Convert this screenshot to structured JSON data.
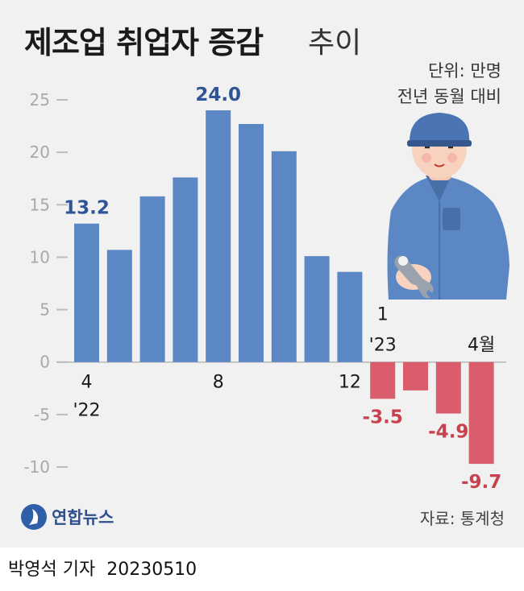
{
  "title": {
    "bold": "제조업 취업자 증감",
    "light": "추이"
  },
  "unit": {
    "line1": "단위: 만명",
    "line2": "전년 동월 대비"
  },
  "source": "자료: 통계청",
  "logo_text": "연합뉴스",
  "credit": {
    "author": "박영석 기자",
    "date": "20230510"
  },
  "colors": {
    "positive": "#5b87c5",
    "negative": "#d95d6c",
    "positive_label": "#2f5596",
    "negative_label": "#c8414f",
    "background": "#f1f1f1"
  },
  "chart_data": {
    "type": "bar",
    "categories": [
      "2022-04",
      "2022-05",
      "2022-06",
      "2022-07",
      "2022-08",
      "2022-09",
      "2022-10",
      "2022-11",
      "2022-12",
      "2023-01",
      "2023-02",
      "2023-03",
      "2023-04"
    ],
    "values": [
      13.2,
      10.7,
      15.8,
      17.6,
      24.0,
      22.7,
      20.1,
      10.1,
      8.6,
      -3.5,
      -2.7,
      -4.9,
      -9.7
    ],
    "ylim": [
      -10,
      25
    ],
    "yticks": [
      {
        "value": 25,
        "label": "25"
      },
      {
        "value": 20,
        "label": "20"
      },
      {
        "value": 15,
        "label": "15"
      },
      {
        "value": 10,
        "label": "10"
      },
      {
        "value": 5,
        "label": "5"
      },
      {
        "value": 0,
        "label": "0"
      },
      {
        "value": -5,
        "label": "-5"
      },
      {
        "value": -10,
        "label": "-10"
      }
    ],
    "xticks": [
      {
        "index": 0,
        "line1": "4",
        "line2": "'22",
        "pos": "below"
      },
      {
        "index": 4,
        "line1": "8",
        "line2": "",
        "pos": "below"
      },
      {
        "index": 8,
        "line1": "12",
        "line2": "",
        "pos": "below"
      },
      {
        "index": 9,
        "line1": "1",
        "line2": "'23",
        "pos": "above"
      },
      {
        "index": 12,
        "line1": "4월",
        "line2": "",
        "pos": "above"
      }
    ],
    "data_labels": [
      {
        "index": 0,
        "text": "13.2"
      },
      {
        "index": 4,
        "text": "24.0"
      },
      {
        "index": 9,
        "text": "-3.5"
      },
      {
        "index": 11,
        "text": "-4.9"
      },
      {
        "index": 12,
        "text": "-9.7"
      }
    ]
  }
}
